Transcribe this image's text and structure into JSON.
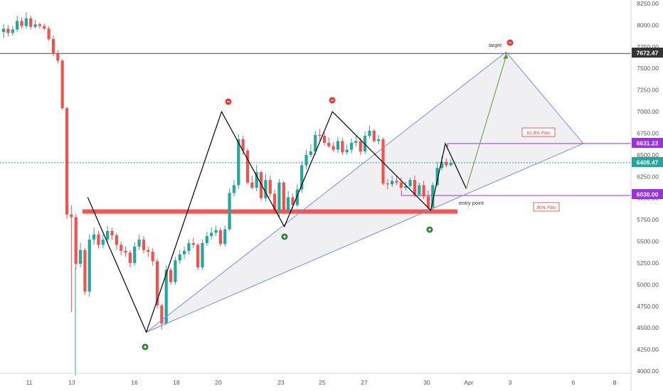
{
  "colors": {
    "up": "#26a69a",
    "down": "#ef5350",
    "zigzag": "#000000",
    "triangle": "#7b8fd8",
    "triangle_fill": "#e3e3e8",
    "support": "#f04545",
    "fib": "#9b30e0",
    "arrow": "#5a9a3a",
    "axis_text": "#555555",
    "badge_dark": "#353535",
    "badge_green": "#26a69a",
    "badge_purple": "#9b30e0",
    "signal_sell": "#e53935",
    "signal_buy": "#2e7d32"
  },
  "chart_data": {
    "type": "candlestick",
    "title": "",
    "xlabel": "",
    "ylabel": "",
    "ylim": [
      3950,
      8350
    ],
    "x_tick_labels": [
      "11",
      "13",
      "16",
      "18",
      "20",
      "23",
      "25",
      "27",
      "30",
      "Apr",
      "3",
      "6",
      "8"
    ],
    "y_tick_labels": [
      "8250.00",
      "8000.00",
      "7750.00",
      "7500.00",
      "7250.00",
      "7000.00",
      "6750.00",
      "6500.00",
      "6250.00",
      "6000.00",
      "5750.00",
      "5500.00",
      "5250.00",
      "5000.00",
      "4750.00",
      "4500.00",
      "4250.00",
      "4000.00"
    ],
    "price_badges": {
      "resistance": "7672.47",
      "fib_618": "6631.23",
      "last_price": "6409.47",
      "fib_50": "6030.00"
    },
    "annotations": {
      "target": "target",
      "entry": "entry point",
      "fib_618": "61.8% Fibo",
      "fib_50": "50% Fibo"
    },
    "zigzag": [
      {
        "date": "Mar 13.8",
        "price": 6010
      },
      {
        "date": "Mar 16.6",
        "price": 4450
      },
      {
        "date": "Mar 20.2",
        "price": 7000
      },
      {
        "date": "Mar 23.2",
        "price": 5670
      },
      {
        "date": "Mar 25.5",
        "price": 7000
      },
      {
        "date": "Mar 30.2",
        "price": 5860
      },
      {
        "date": "Mar 30.9",
        "price": 6631
      },
      {
        "date": "Mar 31.9",
        "price": 6110
      }
    ],
    "support_zone": {
      "low": 5820,
      "high": 5870
    },
    "resistance_line": 7672.47,
    "fib_levels": [
      6631.23,
      6030.0
    ],
    "target_price": 7690,
    "candles": {
      "open": [
        7920,
        7960,
        7910,
        7950,
        8050,
        7990,
        8080,
        7980,
        8010,
        7990,
        7960,
        7840,
        7670,
        7590,
        7040,
        5810,
        5780,
        5240,
        5400,
        4920,
        5520,
        5580,
        5460,
        5520,
        5620,
        5570,
        5460,
        5390,
        5370,
        5250,
        5440,
        5520,
        5400,
        5380,
        5270,
        4760,
        4550,
        5170,
        5030,
        5280,
        5350,
        5390,
        5480,
        5460,
        5200,
        5480,
        5560,
        5600,
        5630,
        5470,
        5640,
        6060,
        6150,
        6680,
        6550,
        6180,
        6120,
        6300,
        6000,
        6210,
        6050,
        5860,
        6180,
        5860,
        6010,
        5920,
        6100,
        6380,
        6500,
        6540,
        6730,
        6720,
        6640,
        6600,
        6560,
        6660,
        6530,
        6560,
        6640,
        6660,
        6540,
        6720,
        6780,
        6660,
        6680,
        6170,
        6160,
        6200,
        6180,
        6120,
        6140,
        6210,
        6040,
        6150,
        6020,
        5890,
        6150,
        6350,
        6420,
        6380
      ],
      "close": [
        7960,
        7910,
        7950,
        8050,
        7990,
        8080,
        7980,
        8010,
        7990,
        7960,
        7840,
        7670,
        7590,
        7040,
        5810,
        5780,
        5240,
        5400,
        4920,
        5520,
        5580,
        5460,
        5520,
        5620,
        5570,
        5460,
        5390,
        5370,
        5250,
        5440,
        5520,
        5400,
        5380,
        5270,
        4760,
        4550,
        5170,
        5030,
        5280,
        5350,
        5390,
        5480,
        5460,
        5200,
        5480,
        5560,
        5600,
        5630,
        5470,
        5640,
        6060,
        6150,
        6680,
        6550,
        6180,
        6120,
        6300,
        6000,
        6210,
        6050,
        5860,
        6180,
        5860,
        6010,
        5920,
        6100,
        6380,
        6500,
        6540,
        6730,
        6720,
        6640,
        6600,
        6560,
        6660,
        6530,
        6560,
        6640,
        6660,
        6540,
        6720,
        6780,
        6660,
        6680,
        6170,
        6160,
        6200,
        6180,
        6120,
        6140,
        6210,
        6040,
        6150,
        6020,
        5890,
        6150,
        6350,
        6420,
        6380,
        6409
      ],
      "high": [
        8010,
        8000,
        7990,
        8110,
        8090,
        8150,
        8110,
        8060,
        8030,
        8020,
        7990,
        7880,
        7710,
        7610,
        7060,
        5920,
        5820,
        5480,
        5420,
        5580,
        5660,
        5620,
        5580,
        5680,
        5660,
        5600,
        5500,
        5440,
        5400,
        5490,
        5580,
        5560,
        5440,
        5420,
        5300,
        4780,
        5220,
        5200,
        5320,
        5400,
        5440,
        5520,
        5540,
        5480,
        5520,
        5610,
        5660,
        5680,
        5660,
        5680,
        6110,
        6210,
        6740,
        6720,
        6580,
        6260,
        6380,
        6320,
        6280,
        6260,
        6100,
        6220,
        6200,
        6080,
        6050,
        6160,
        6430,
        6560,
        6620,
        6780,
        6800,
        6760,
        6700,
        6650,
        6710,
        6700,
        6620,
        6690,
        6720,
        6700,
        6770,
        6840,
        6800,
        6730,
        6700,
        6220,
        6260,
        6250,
        6240,
        6190,
        6240,
        6260,
        6180,
        6200,
        6090,
        6180,
        6420,
        6480,
        6460,
        6450
      ],
      "low": [
        7850,
        7870,
        7880,
        7920,
        7960,
        7960,
        7950,
        7960,
        7960,
        7940,
        7820,
        7640,
        7560,
        7020,
        5760,
        4680,
        5180,
        5200,
        4880,
        4860,
        5460,
        5420,
        5420,
        5480,
        5520,
        5400,
        5340,
        5320,
        5200,
        5220,
        5400,
        5360,
        5320,
        5220,
        4720,
        4480,
        4530,
        5000,
        5000,
        5240,
        5300,
        5350,
        5420,
        5170,
        5170,
        5450,
        5520,
        5560,
        5440,
        5440,
        5620,
        6020,
        6110,
        6500,
        6160,
        6100,
        6080,
        5970,
        5960,
        6010,
        5830,
        5780,
        5830,
        5840,
        5880,
        5900,
        6060,
        6330,
        6470,
        6500,
        6650,
        6610,
        6580,
        6540,
        6520,
        6500,
        6500,
        6520,
        6600,
        6500,
        6510,
        6690,
        6640,
        6620,
        6150,
        6100,
        6130,
        6150,
        6100,
        6090,
        6120,
        6010,
        6020,
        5990,
        5860,
        5870,
        6140,
        6320,
        6360,
        6370
      ]
    }
  }
}
